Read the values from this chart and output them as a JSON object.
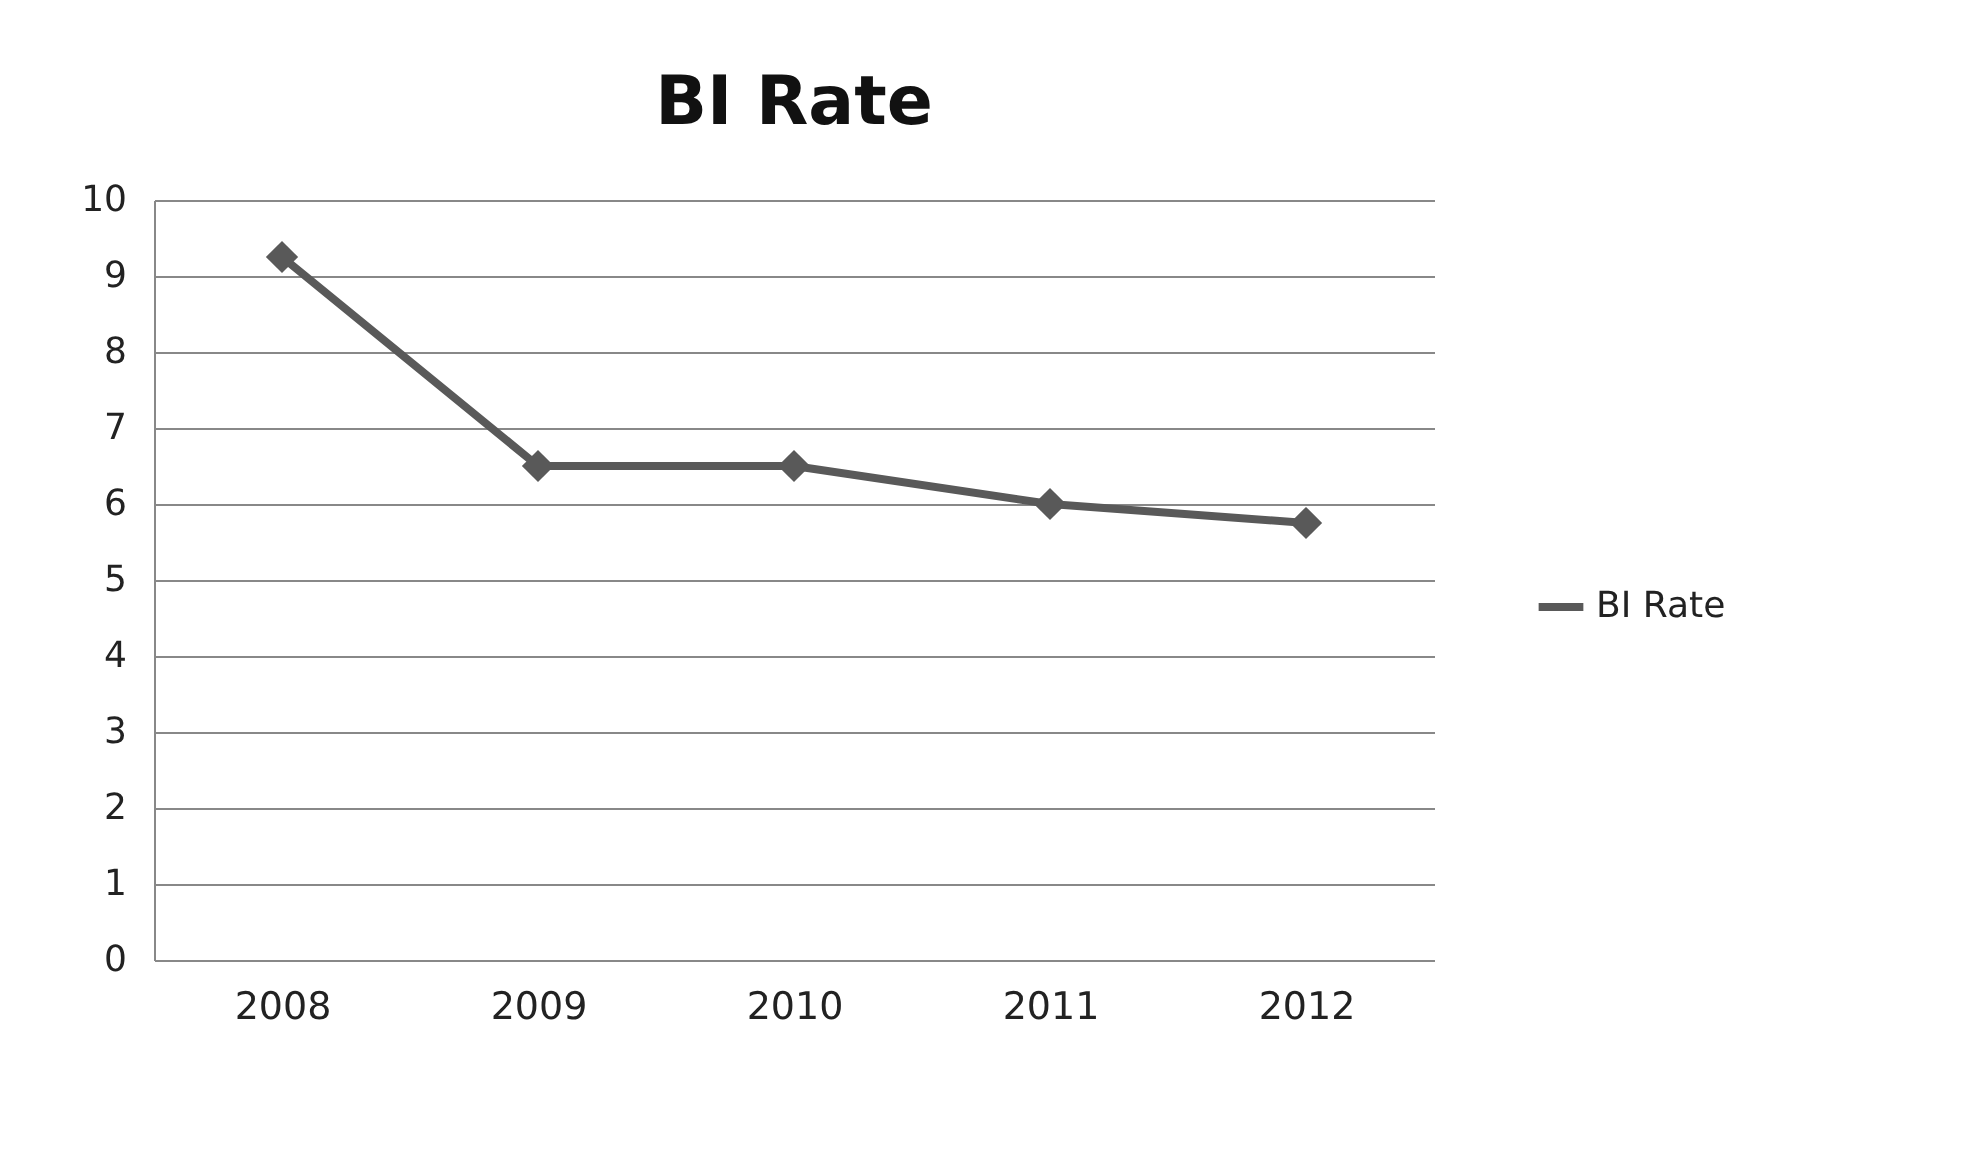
{
  "chart_data": {
    "type": "line",
    "title": "BI Rate",
    "categories": [
      "2008",
      "2009",
      "2010",
      "2011",
      "2012"
    ],
    "series": [
      {
        "name": "BI Rate",
        "color": "#595959",
        "values": [
          9.25,
          6.5,
          6.5,
          6.0,
          5.75
        ]
      }
    ],
    "ylim": [
      0,
      10
    ],
    "yticks": [
      0,
      1,
      2,
      3,
      4,
      5,
      6,
      7,
      8,
      9,
      10
    ],
    "grid": "y",
    "legend": "right",
    "marker": "diamond",
    "line_style": "solid"
  }
}
